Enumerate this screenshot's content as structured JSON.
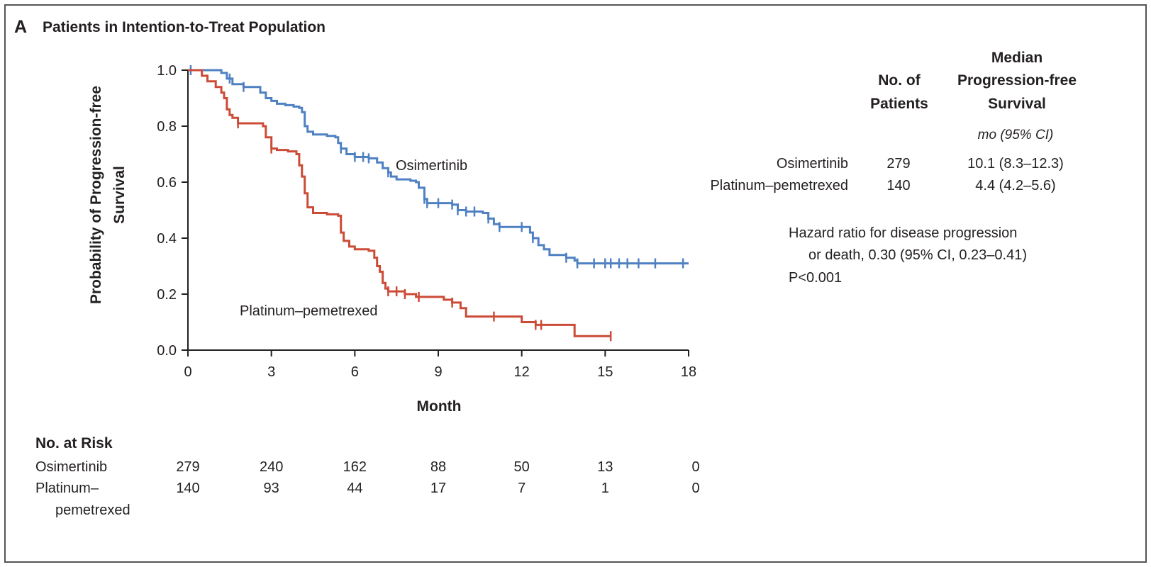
{
  "panel": {
    "letter": "A",
    "title": "Patients in Intention-to-Treat Population"
  },
  "chart_data": {
    "type": "line",
    "subtype": "kaplan-meier",
    "xlabel": "Month",
    "ylabel": "Probability of Progression-free Survival",
    "ylabel_lines": [
      "Probability of Progression-free",
      "Survival"
    ],
    "xlim": [
      0,
      18
    ],
    "ylim": [
      0,
      1.0
    ],
    "xticks": [
      0,
      3,
      6,
      9,
      12,
      15,
      18
    ],
    "xtick_labels": [
      "0",
      "3",
      "6",
      "9",
      "12",
      "15",
      "18"
    ],
    "yticks": [
      0.0,
      0.2,
      0.4,
      0.6,
      0.8,
      1.0
    ],
    "ytick_labels": [
      "0.0",
      "0.2",
      "0.4",
      "0.6",
      "0.8",
      "1.0"
    ],
    "grid": false,
    "series": [
      {
        "name": "Osimertinib",
        "label": "Osimertinib",
        "color": "#4f81c2",
        "points": [
          [
            0,
            1.0
          ],
          [
            1.0,
            1.0
          ],
          [
            1.2,
            0.99
          ],
          [
            1.4,
            0.97
          ],
          [
            1.6,
            0.95
          ],
          [
            2.0,
            0.94
          ],
          [
            2.2,
            0.94
          ],
          [
            2.6,
            0.92
          ],
          [
            2.8,
            0.9
          ],
          [
            3.0,
            0.89
          ],
          [
            3.2,
            0.88
          ],
          [
            3.5,
            0.875
          ],
          [
            3.8,
            0.87
          ],
          [
            4.0,
            0.865
          ],
          [
            4.1,
            0.85
          ],
          [
            4.2,
            0.8
          ],
          [
            4.3,
            0.78
          ],
          [
            4.5,
            0.77
          ],
          [
            5.0,
            0.765
          ],
          [
            5.3,
            0.76
          ],
          [
            5.4,
            0.74
          ],
          [
            5.5,
            0.72
          ],
          [
            5.7,
            0.7
          ],
          [
            6.0,
            0.69
          ],
          [
            6.5,
            0.685
          ],
          [
            6.8,
            0.67
          ],
          [
            7.0,
            0.65
          ],
          [
            7.2,
            0.635
          ],
          [
            7.3,
            0.62
          ],
          [
            7.5,
            0.61
          ],
          [
            8.0,
            0.605
          ],
          [
            8.2,
            0.6
          ],
          [
            8.3,
            0.58
          ],
          [
            8.5,
            0.54
          ],
          [
            8.6,
            0.525
          ],
          [
            9.0,
            0.525
          ],
          [
            9.5,
            0.52
          ],
          [
            9.7,
            0.5
          ],
          [
            10.0,
            0.495
          ],
          [
            10.6,
            0.49
          ],
          [
            10.8,
            0.47
          ],
          [
            11.0,
            0.45
          ],
          [
            11.2,
            0.44
          ],
          [
            12.0,
            0.44
          ],
          [
            12.3,
            0.42
          ],
          [
            12.4,
            0.4
          ],
          [
            12.6,
            0.375
          ],
          [
            12.8,
            0.36
          ],
          [
            13.0,
            0.34
          ],
          [
            13.6,
            0.33
          ],
          [
            13.9,
            0.32
          ],
          [
            14.0,
            0.31
          ],
          [
            18.0,
            0.31
          ]
        ],
        "censor_x": [
          0.1,
          1.5,
          2.0,
          5.5,
          6.0,
          6.3,
          6.5,
          7.2,
          8.5,
          8.6,
          9.0,
          9.5,
          9.7,
          10.0,
          10.3,
          10.8,
          11.2,
          12.0,
          12.4,
          13.6,
          14.0,
          14.6,
          15.0,
          15.2,
          15.5,
          15.8,
          16.2,
          16.8,
          17.8
        ]
      },
      {
        "name": "Platinum–pemetrexed",
        "label": "Platinum–pemetrexed",
        "color": "#cc4b37",
        "points": [
          [
            0,
            1.0
          ],
          [
            0.5,
            0.98
          ],
          [
            0.7,
            0.96
          ],
          [
            1.0,
            0.94
          ],
          [
            1.2,
            0.92
          ],
          [
            1.3,
            0.9
          ],
          [
            1.4,
            0.86
          ],
          [
            1.5,
            0.84
          ],
          [
            1.6,
            0.83
          ],
          [
            1.8,
            0.81
          ],
          [
            2.0,
            0.81
          ],
          [
            2.7,
            0.8
          ],
          [
            2.8,
            0.76
          ],
          [
            3.0,
            0.72
          ],
          [
            3.2,
            0.715
          ],
          [
            3.6,
            0.71
          ],
          [
            3.9,
            0.7
          ],
          [
            4.0,
            0.66
          ],
          [
            4.1,
            0.62
          ],
          [
            4.2,
            0.56
          ],
          [
            4.3,
            0.51
          ],
          [
            4.5,
            0.49
          ],
          [
            5.0,
            0.485
          ],
          [
            5.4,
            0.48
          ],
          [
            5.5,
            0.42
          ],
          [
            5.6,
            0.39
          ],
          [
            5.8,
            0.37
          ],
          [
            6.0,
            0.36
          ],
          [
            6.5,
            0.355
          ],
          [
            6.7,
            0.33
          ],
          [
            6.8,
            0.3
          ],
          [
            6.9,
            0.28
          ],
          [
            7.0,
            0.24
          ],
          [
            7.1,
            0.22
          ],
          [
            7.2,
            0.21
          ],
          [
            7.5,
            0.21
          ],
          [
            7.8,
            0.2
          ],
          [
            8.2,
            0.19
          ],
          [
            9.2,
            0.18
          ],
          [
            9.5,
            0.17
          ],
          [
            9.8,
            0.15
          ],
          [
            10.0,
            0.12
          ],
          [
            11.0,
            0.12
          ],
          [
            12.0,
            0.1
          ],
          [
            12.5,
            0.09
          ],
          [
            13.5,
            0.09
          ],
          [
            13.9,
            0.05
          ],
          [
            15.2,
            0.05
          ]
        ],
        "censor_x": [
          1.8,
          3.0,
          7.2,
          7.5,
          7.8,
          8.3,
          9.5,
          11.0,
          12.5,
          12.7,
          15.2
        ]
      }
    ]
  },
  "summary_table": {
    "header_patients": [
      "No. of",
      "Patients"
    ],
    "header_median": [
      "Median",
      "Progression-free",
      "Survival"
    ],
    "unit_note": "mo (95% CI)",
    "rows": [
      {
        "group": "Osimertinib",
        "patients": "279",
        "median": "10.1 (8.3–12.3)"
      },
      {
        "group": "Platinum–pemetrexed",
        "patients": "140",
        "median": "4.4 (4.2–5.6)"
      }
    ]
  },
  "hazard": {
    "line1": "Hazard ratio for disease progression",
    "line2": "or death, 0.30 (95% CI, 0.23–0.41)",
    "pvalue": "P<0.001"
  },
  "risk_table": {
    "title": "No. at Risk",
    "rows": [
      {
        "label_lines": [
          "Osimertinib"
        ],
        "values": [
          "279",
          "240",
          "162",
          "88",
          "50",
          "13",
          "0"
        ]
      },
      {
        "label_lines": [
          "Platinum–",
          "pemetrexed"
        ],
        "values": [
          "140",
          "93",
          "44",
          "17",
          "7",
          "1",
          "0"
        ]
      }
    ]
  }
}
